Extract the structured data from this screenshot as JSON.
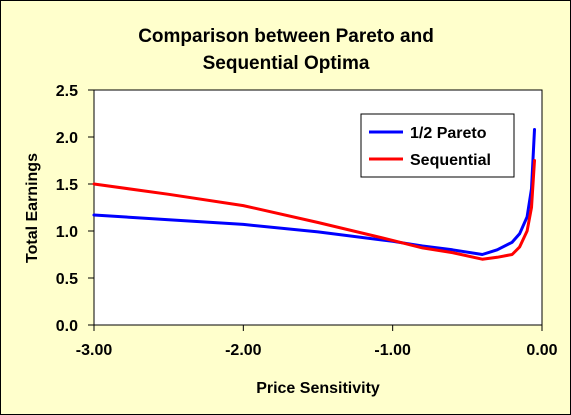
{
  "chart_data": {
    "type": "line",
    "title_line1": "Comparison between Pareto and",
    "title_line2": "Sequential Optima",
    "xlabel": "Price Sensitivity",
    "ylabel": "Total Earnings",
    "xlim": [
      -3.0,
      0.0
    ],
    "ylim": [
      0.0,
      2.5
    ],
    "x_ticks": [
      "-3.00",
      "-2.00",
      "-1.00",
      "0.00"
    ],
    "y_ticks": [
      "0.0",
      "0.5",
      "1.0",
      "1.5",
      "2.0",
      "2.5"
    ],
    "grid": false,
    "legend_position": "top-right",
    "series": [
      {
        "name": "1/2 Pareto",
        "color": "#0000ff",
        "points": [
          [
            -3.0,
            1.17
          ],
          [
            -2.5,
            1.12
          ],
          [
            -2.0,
            1.07
          ],
          [
            -1.5,
            0.99
          ],
          [
            -1.0,
            0.89
          ],
          [
            -0.8,
            0.84
          ],
          [
            -0.6,
            0.8
          ],
          [
            -0.4,
            0.75
          ],
          [
            -0.3,
            0.8
          ],
          [
            -0.2,
            0.88
          ],
          [
            -0.15,
            0.97
          ],
          [
            -0.1,
            1.15
          ],
          [
            -0.07,
            1.45
          ],
          [
            -0.05,
            2.08
          ]
        ]
      },
      {
        "name": "Sequential",
        "color": "#ff0000",
        "points": [
          [
            -3.0,
            1.5
          ],
          [
            -2.5,
            1.39
          ],
          [
            -2.0,
            1.27
          ],
          [
            -1.5,
            1.09
          ],
          [
            -1.0,
            0.9
          ],
          [
            -0.8,
            0.82
          ],
          [
            -0.6,
            0.77
          ],
          [
            -0.4,
            0.7
          ],
          [
            -0.3,
            0.72
          ],
          [
            -0.2,
            0.75
          ],
          [
            -0.15,
            0.83
          ],
          [
            -0.1,
            1.0
          ],
          [
            -0.07,
            1.25
          ],
          [
            -0.05,
            1.75
          ]
        ]
      }
    ]
  }
}
